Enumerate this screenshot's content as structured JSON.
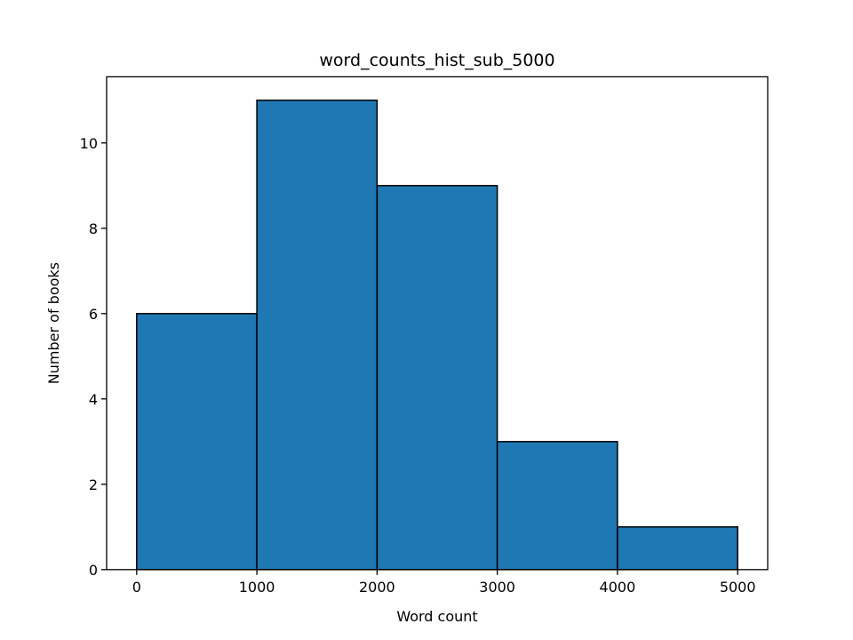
{
  "chart_data": {
    "type": "bar",
    "title": "word_counts_hist_sub_5000",
    "xlabel": "Word count",
    "ylabel": "Number of books",
    "bins": [
      {
        "start": 0,
        "end": 1000,
        "count": 6
      },
      {
        "start": 1000,
        "end": 2000,
        "count": 11
      },
      {
        "start": 2000,
        "end": 3000,
        "count": 9
      },
      {
        "start": 3000,
        "end": 4000,
        "count": 3
      },
      {
        "start": 4000,
        "end": 5000,
        "count": 1
      }
    ],
    "xlim": [
      -250,
      5250
    ],
    "ylim": [
      0,
      11.55
    ],
    "xticks": [
      0,
      1000,
      2000,
      3000,
      4000,
      5000
    ],
    "yticks": [
      0,
      2,
      4,
      6,
      8,
      10
    ],
    "grid": false,
    "legend": "none",
    "colors": {
      "bar_fill": "#1f77b4",
      "bar_edge": "#000000",
      "axes": "#000000"
    }
  }
}
